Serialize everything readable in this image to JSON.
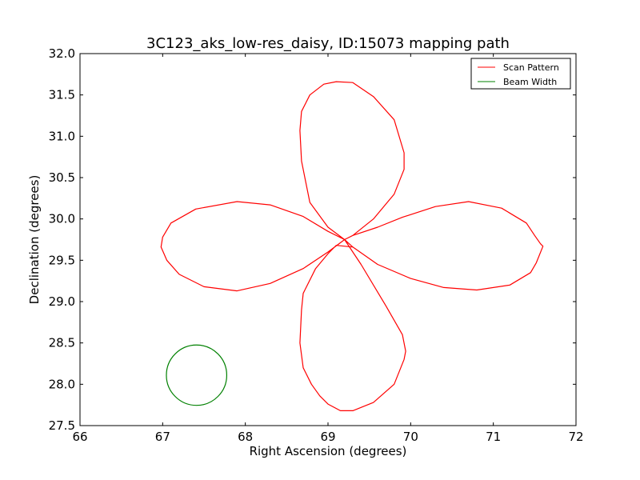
{
  "chart_data": {
    "type": "line",
    "title": "3C123_aks_low-res_daisy, ID:15073 mapping path",
    "xlabel": "Right Ascension (degrees)",
    "ylabel": "Declination (degrees)",
    "xlim": [
      66,
      72
    ],
    "ylim": [
      27.5,
      32.0
    ],
    "xticks": [
      "66",
      "67",
      "68",
      "69",
      "70",
      "71",
      "72"
    ],
    "yticks": [
      "27.5",
      "28.0",
      "28.5",
      "29.0",
      "29.5",
      "30.0",
      "30.5",
      "31.0",
      "31.5",
      "32.0"
    ],
    "grid": false,
    "legend_position": "top-right",
    "series": [
      {
        "name": "Scan Pattern",
        "color": "#ff0000",
        "x": [
          69.2,
          69.3,
          69.6,
          69.9,
          70.3,
          70.7,
          71.1,
          71.4,
          71.5,
          71.57,
          71.6,
          71.6,
          71.52,
          71.45,
          71.2,
          70.8,
          70.4,
          70.0,
          69.6,
          69.3,
          69.2,
          69.0,
          68.7,
          68.3,
          67.9,
          67.5,
          67.2,
          67.05,
          66.98,
          67.0,
          67.1,
          67.4,
          67.9,
          68.3,
          68.7,
          69.0,
          69.2,
          69.0,
          68.78,
          68.68,
          68.66,
          68.68,
          68.78,
          68.95,
          69.1,
          69.3,
          69.55,
          69.8,
          69.92,
          69.92,
          69.8,
          69.55,
          69.3,
          69.2,
          69.4,
          69.7,
          69.9,
          69.94,
          69.92,
          69.8,
          69.55,
          69.3,
          69.15,
          69.0,
          68.9,
          68.8,
          68.7,
          68.66,
          68.68,
          68.7,
          68.85,
          69.0,
          69.1,
          69.3,
          69.2
        ],
        "y": [
          29.75,
          29.8,
          29.9,
          30.02,
          30.15,
          30.21,
          30.13,
          29.95,
          29.8,
          29.7,
          29.67,
          29.67,
          29.47,
          29.35,
          29.2,
          29.14,
          29.17,
          29.28,
          29.45,
          29.66,
          29.75,
          29.6,
          29.4,
          29.22,
          29.13,
          29.18,
          29.33,
          29.5,
          29.66,
          29.78,
          29.95,
          30.12,
          30.21,
          30.17,
          30.03,
          29.85,
          29.75,
          29.9,
          30.2,
          30.7,
          31.07,
          31.3,
          31.5,
          31.63,
          31.66,
          31.65,
          31.48,
          31.2,
          30.8,
          30.6,
          30.3,
          30.0,
          29.8,
          29.75,
          29.45,
          28.95,
          28.6,
          28.4,
          28.3,
          28.0,
          27.78,
          27.68,
          27.68,
          27.76,
          27.86,
          28.0,
          28.2,
          28.5,
          28.9,
          29.1,
          29.4,
          29.58,
          29.68,
          29.66,
          29.75
        ]
      },
      {
        "name": "Beam Width",
        "color": "#008000",
        "shape": "circle",
        "center": [
          67.41,
          28.11
        ],
        "radius_y": 0.365,
        "radius_x": 0.365
      }
    ]
  }
}
